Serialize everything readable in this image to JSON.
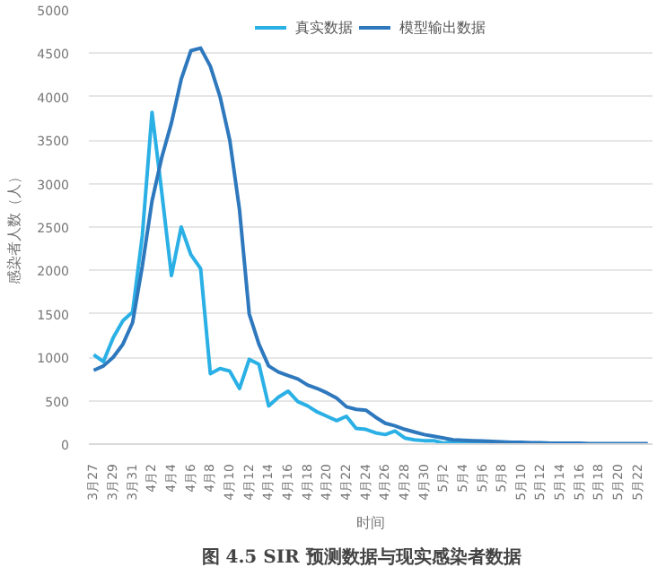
{
  "chart_data": {
    "type": "line",
    "title": "图 4.5    SIR 预测数据与现实感染者数据",
    "xlabel": "时间",
    "ylabel": "感染者人数（人）",
    "categories": [
      "3月27",
      null,
      "3月29",
      null,
      "3月31",
      null,
      "4月2",
      null,
      "4月4",
      null,
      "4月6",
      null,
      "4月8",
      null,
      "4月10",
      null,
      "4月12",
      null,
      "4月14",
      null,
      "4月16",
      null,
      "4月18",
      null,
      "4月20",
      null,
      "4月22",
      null,
      "4月24",
      null,
      "4月26",
      null,
      "4月28",
      null,
      "4月30",
      null,
      "5月2",
      null,
      "5月4",
      null,
      "5月6",
      null,
      "5月8",
      null,
      "5月10",
      null,
      "5月12",
      null,
      "5月14",
      null,
      "5月16",
      null,
      "5月18",
      null,
      "5月20",
      null,
      "5月22",
      null
    ],
    "ylim": [
      0,
      5000
    ],
    "yticks": [
      0,
      500,
      1000,
      1500,
      2000,
      2500,
      3000,
      3500,
      4000,
      4500,
      5000
    ],
    "grid": "y",
    "legend": "top",
    "series": [
      {
        "name": "真实数据",
        "color": "#2bb0e6",
        "values": [
          1030,
          950,
          1225,
          1420,
          1520,
          2400,
          3820,
          2900,
          1940,
          2500,
          2180,
          2020,
          810,
          870,
          840,
          640,
          975,
          920,
          440,
          540,
          610,
          490,
          440,
          370,
          320,
          270,
          320,
          180,
          170,
          130,
          110,
          150,
          70,
          50,
          40,
          40,
          10,
          30,
          20,
          15,
          10,
          10,
          5,
          5,
          5,
          5,
          0,
          0,
          0,
          0,
          0,
          0,
          0,
          0,
          0,
          0,
          0,
          0
        ]
      },
      {
        "name": "模型输出数据",
        "color": "#2e78bd",
        "values": [
          850,
          900,
          1000,
          1150,
          1400,
          2050,
          2800,
          3300,
          3700,
          4200,
          4530,
          4560,
          4350,
          4000,
          3500,
          2700,
          1500,
          1150,
          900,
          830,
          790,
          750,
          680,
          640,
          590,
          530,
          430,
          400,
          390,
          310,
          240,
          210,
          170,
          140,
          110,
          90,
          70,
          50,
          45,
          40,
          35,
          30,
          25,
          20,
          20,
          15,
          15,
          10,
          10,
          10,
          10,
          5,
          5,
          5,
          5,
          5,
          5,
          5
        ]
      }
    ]
  }
}
